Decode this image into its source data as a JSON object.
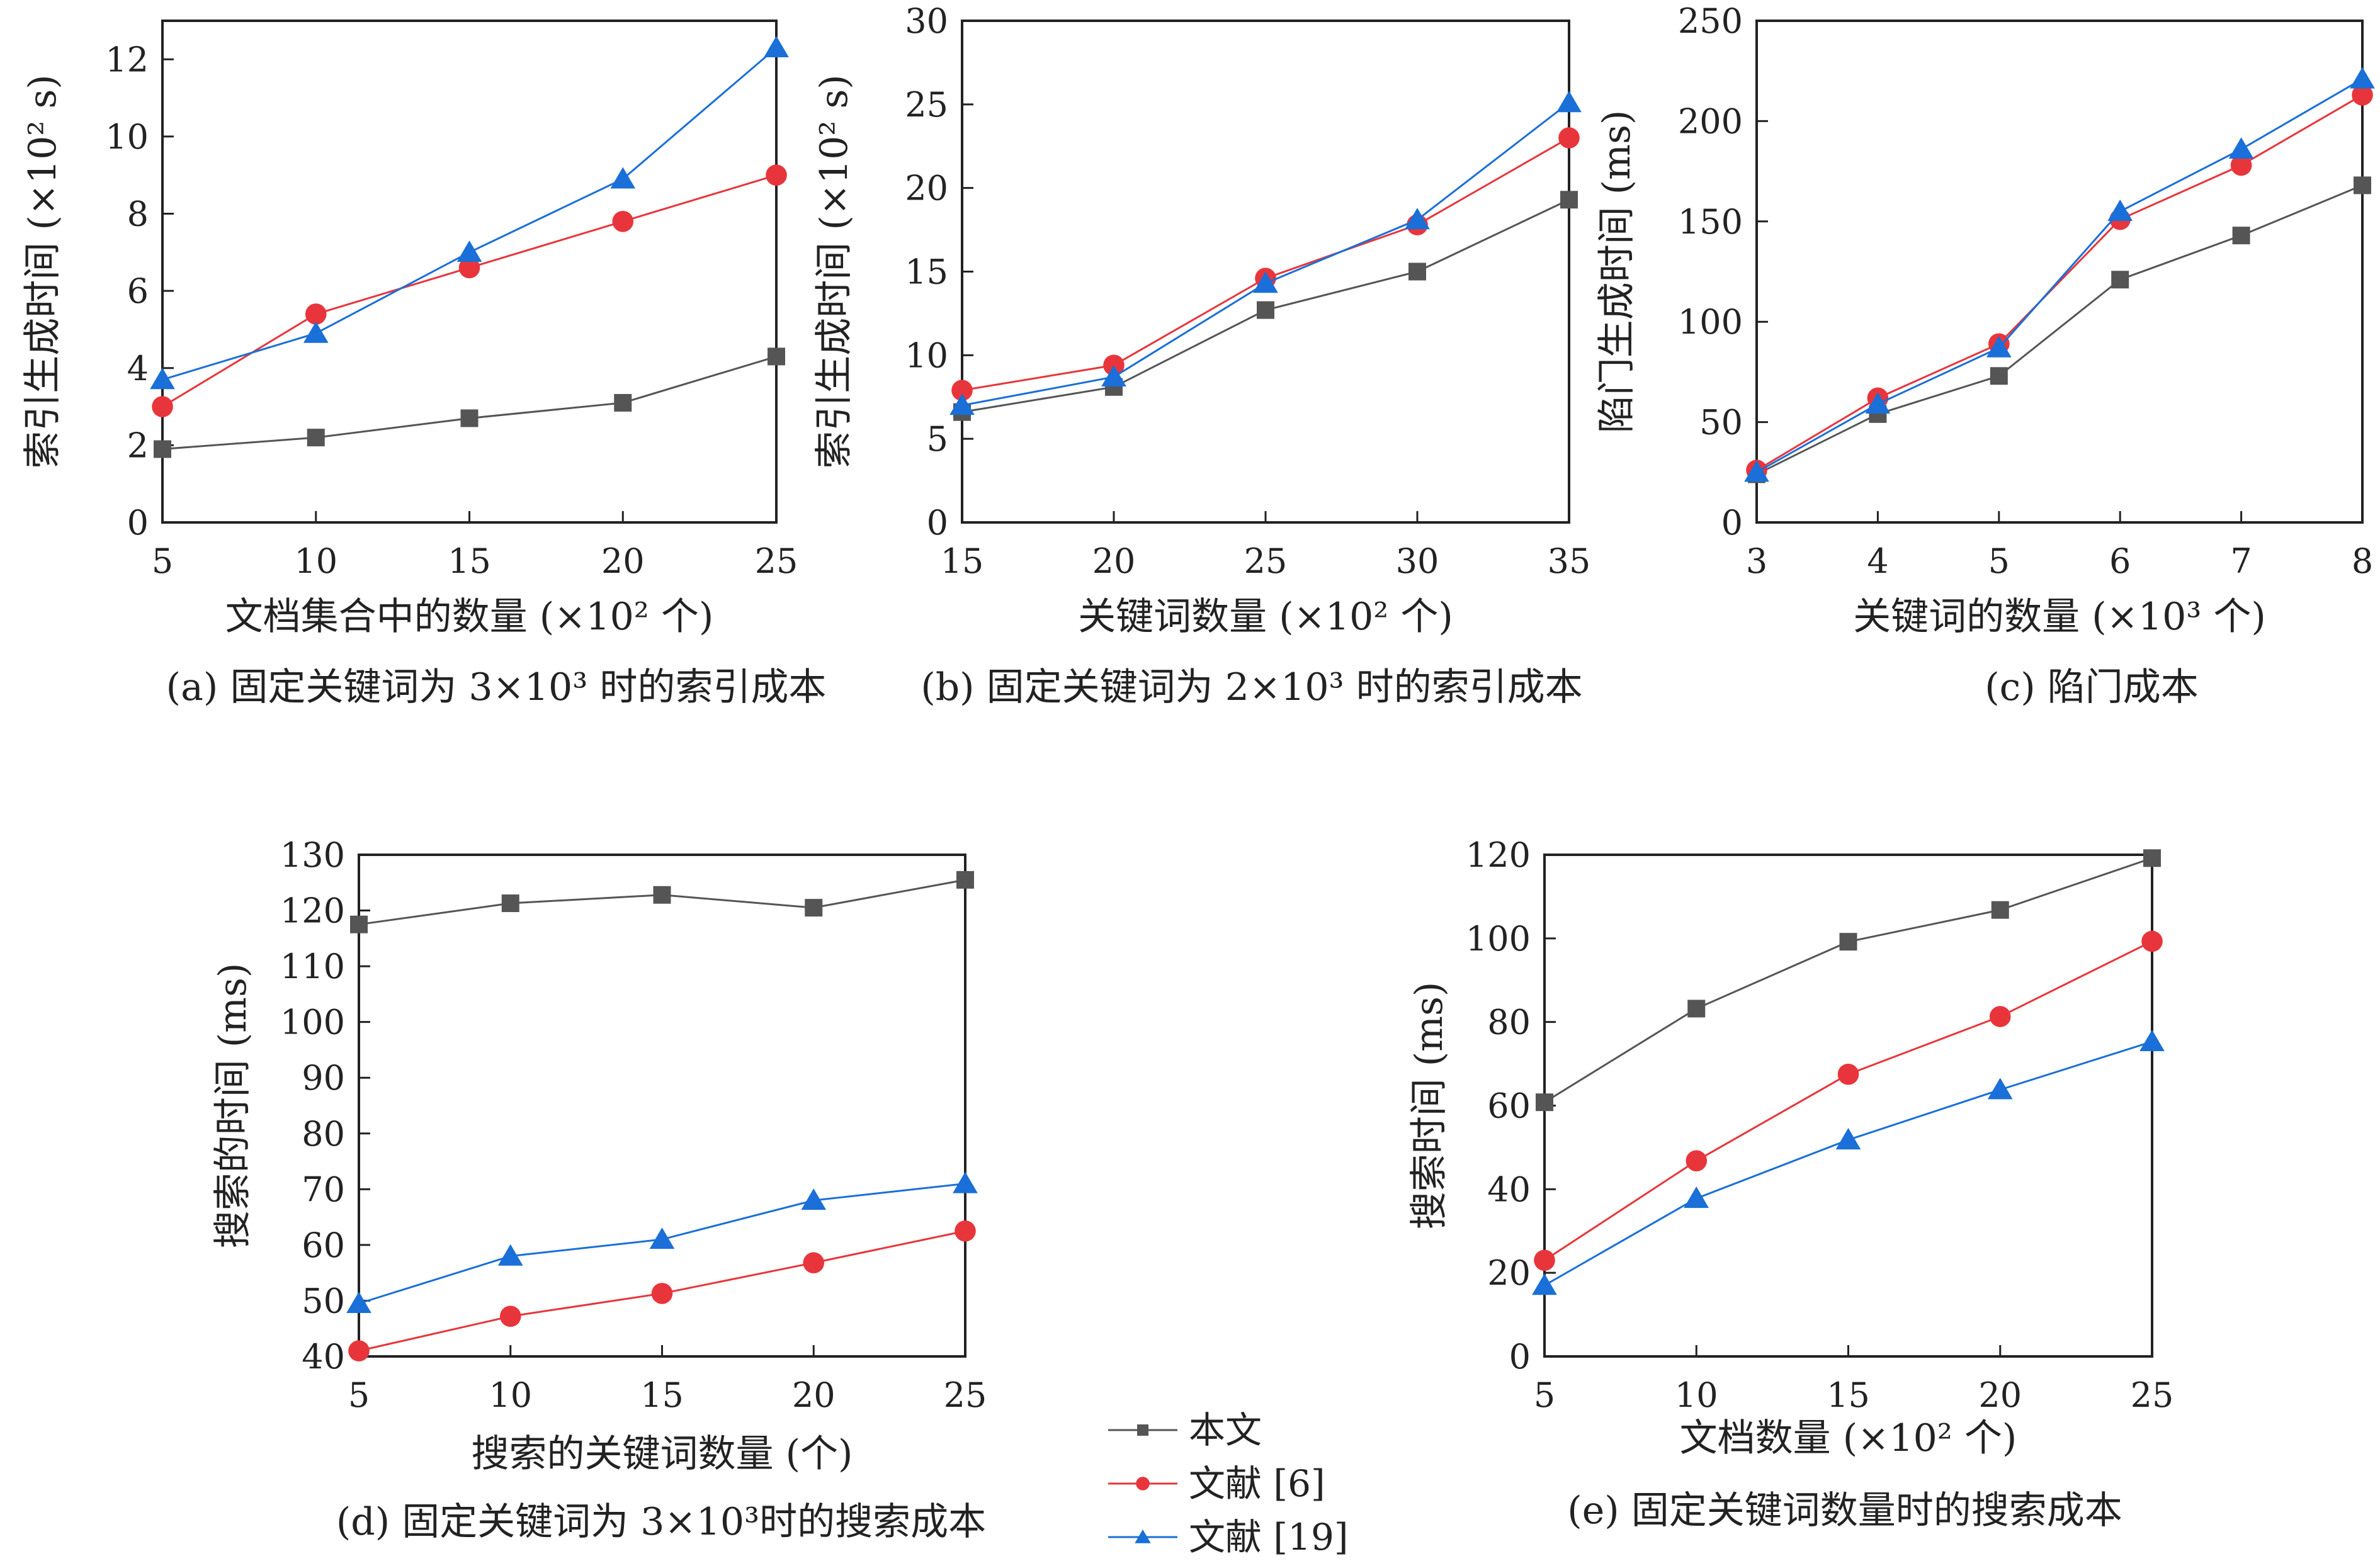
{
  "series_styles": [
    {
      "name": "本文",
      "color": "#555555",
      "marker": "square"
    },
    {
      "name": "文献 [6]",
      "color": "#e8353b",
      "marker": "circle"
    },
    {
      "name": "文献 [19]",
      "color": "#1a6fd8",
      "marker": "triangle"
    }
  ],
  "chart_data": [
    {
      "type": "line",
      "caption": "(a) 固定关键词为 3×10³ 时的索引成本",
      "xlabel": "文档集合中的数量 (×10² 个)",
      "ylabel": "索引生成时间 (×10² s)",
      "x": [
        5,
        10,
        15,
        20,
        25
      ],
      "xlim": [
        5,
        25
      ],
      "ylim": [
        0,
        13
      ],
      "xticks": [
        5,
        10,
        15,
        20,
        25
      ],
      "yticks": [
        0,
        2,
        4,
        6,
        8,
        10,
        12
      ],
      "series": [
        {
          "name": "本文",
          "values": [
            1.9,
            2.2,
            2.7,
            3.1,
            4.3
          ]
        },
        {
          "name": "文献 [6]",
          "values": [
            3.0,
            5.4,
            6.6,
            7.8,
            9.0
          ]
        },
        {
          "name": "文献 [19]",
          "values": [
            3.7,
            4.9,
            7.0,
            8.9,
            12.3
          ]
        }
      ]
    },
    {
      "type": "line",
      "caption": "(b) 固定关键词为 2×10³ 时的索引成本",
      "xlabel": "关键词数量 (×10² 个)",
      "ylabel": "索引生成时间 (×10² s)",
      "x": [
        15,
        20,
        25,
        30,
        35
      ],
      "xlim": [
        15,
        35
      ],
      "ylim": [
        0,
        30
      ],
      "xticks": [
        15,
        20,
        25,
        30,
        35
      ],
      "yticks": [
        0,
        5,
        10,
        15,
        20,
        25,
        30
      ],
      "series": [
        {
          "name": "本文",
          "values": [
            6.6,
            8.1,
            12.7,
            15.0,
            19.3
          ]
        },
        {
          "name": "文献 [6]",
          "values": [
            7.9,
            9.4,
            14.6,
            17.8,
            23.0
          ]
        },
        {
          "name": "文献 [19]",
          "values": [
            7.0,
            8.7,
            14.3,
            18.1,
            25.1
          ]
        }
      ]
    },
    {
      "type": "line",
      "caption": "(c) 陷门成本",
      "xlabel": "关键词的数量 (×10³ 个)",
      "ylabel": "陷门生成时间 (ms)",
      "x": [
        3,
        4,
        5,
        6,
        7,
        8
      ],
      "xlim": [
        3,
        8
      ],
      "ylim": [
        0,
        250
      ],
      "xticks": [
        3,
        4,
        5,
        6,
        7,
        8
      ],
      "yticks": [
        0,
        50,
        100,
        150,
        200,
        250
      ],
      "series": [
        {
          "name": "本文",
          "values": [
            24,
            54,
            73,
            121,
            143,
            168
          ]
        },
        {
          "name": "文献 [6]",
          "values": [
            26,
            62,
            89,
            151,
            178,
            213
          ]
        },
        {
          "name": "文献 [19]",
          "values": [
            25,
            59,
            87,
            155,
            186,
            221
          ]
        }
      ]
    },
    {
      "type": "line",
      "caption": "(d) 固定关键词为 3×10³时的搜索成本",
      "xlabel": "搜索的关键词数量 (个)",
      "ylabel": "搜索的时间 (ms)",
      "x": [
        5,
        10,
        15,
        20,
        25
      ],
      "xlim": [
        5,
        25
      ],
      "ylim": [
        40,
        130
      ],
      "xticks": [
        5,
        10,
        15,
        20,
        25
      ],
      "yticks": [
        40,
        50,
        60,
        70,
        80,
        90,
        100,
        110,
        120,
        130
      ],
      "series": [
        {
          "name": "本文",
          "values": [
            117.5,
            121.3,
            122.8,
            120.5,
            125.5
          ]
        },
        {
          "name": "文献 [6]",
          "values": [
            41.0,
            47.2,
            51.3,
            56.8,
            62.5
          ]
        },
        {
          "name": "文献 [19]",
          "values": [
            49.5,
            58.0,
            61.0,
            68.0,
            71.0
          ]
        }
      ]
    },
    {
      "type": "line",
      "caption": "(e) 固定关键词数量时的搜索成本",
      "xlabel": "文档数量 (×10² 个)",
      "ylabel": "搜索时间 (ms)",
      "x": [
        5,
        10,
        15,
        20,
        25
      ],
      "xlim": [
        5,
        25
      ],
      "ylim": [
        0,
        120
      ],
      "xticks": [
        5,
        10,
        15,
        20,
        25
      ],
      "yticks": [
        0,
        20,
        40,
        60,
        80,
        100,
        120
      ],
      "series": [
        {
          "name": "本文",
          "values": [
            60.8,
            83.2,
            99.2,
            106.8,
            119.2
          ]
        },
        {
          "name": "文献 [6]",
          "values": [
            23.0,
            46.8,
            67.5,
            81.3,
            99.3
          ]
        },
        {
          "name": "文献 [19]",
          "values": [
            17.0,
            37.8,
            51.8,
            63.8,
            75.3
          ]
        }
      ]
    }
  ]
}
